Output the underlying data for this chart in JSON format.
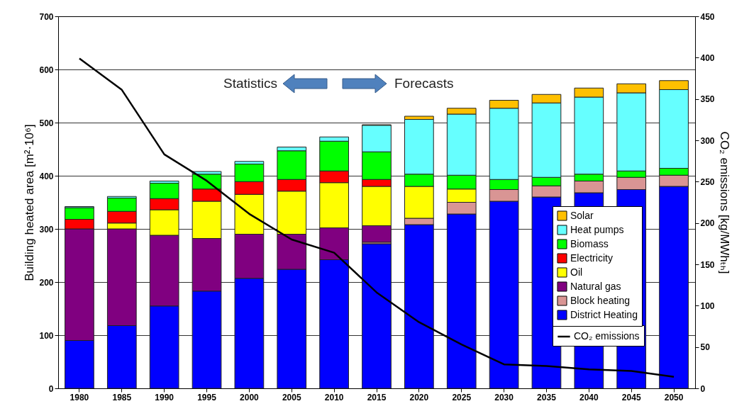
{
  "chart_data": {
    "type": "bar",
    "stacked": true,
    "categories": [
      "1980",
      "1985",
      "1990",
      "1995",
      "2000",
      "2005",
      "2010",
      "2015",
      "2020",
      "2025",
      "2030",
      "2035",
      "2040",
      "2045",
      "2050"
    ],
    "ylabel": "Building heated area [m²·10⁶]",
    "y2label": "CO₂ emissions [kg/MWhₜₕ]",
    "ylim": [
      0,
      700
    ],
    "yticks": [
      0,
      100,
      200,
      300,
      400,
      500,
      600,
      700
    ],
    "y2lim": [
      0,
      450
    ],
    "y2ticks": [
      0,
      50,
      100,
      150,
      200,
      250,
      300,
      350,
      400,
      450
    ],
    "grid": "y",
    "legend": "bottom right",
    "annotations": [
      "Statistics",
      "Forecasts"
    ],
    "series": [
      {
        "name": "District Heating",
        "color": "#0000ff",
        "values": [
          90,
          118,
          155,
          183,
          207,
          224,
          242,
          272,
          308,
          328,
          352,
          360,
          368,
          374,
          380
        ]
      },
      {
        "name": "Block heating",
        "color": "#d99594",
        "values": [
          0,
          0,
          0,
          0,
          0,
          0,
          0,
          3,
          12,
          22,
          22,
          21,
          22,
          23,
          21
        ]
      },
      {
        "name": "Natural gas",
        "color": "#800080",
        "values": [
          210,
          182,
          133,
          99,
          83,
          66,
          60,
          31,
          0,
          0,
          0,
          0,
          0,
          0,
          0
        ]
      },
      {
        "name": "Oil",
        "color": "#ffff00",
        "values": [
          0,
          11,
          48,
          70,
          75,
          81,
          85,
          74,
          60,
          25,
          0,
          0,
          0,
          0,
          0
        ]
      },
      {
        "name": "Electricity",
        "color": "#ff0000",
        "values": [
          18,
          22,
          21,
          23,
          24,
          22,
          22,
          13,
          0,
          0,
          0,
          0,
          0,
          0,
          0
        ]
      },
      {
        "name": "Biomass",
        "color": "#00ff00",
        "values": [
          22,
          25,
          29,
          28,
          33,
          54,
          56,
          52,
          23,
          26,
          19,
          16,
          13,
          12,
          13
        ]
      },
      {
        "name": "Heat pumps",
        "color": "#66ffff",
        "values": [
          2,
          3,
          4,
          5,
          5,
          7,
          8,
          50,
          103,
          115,
          134,
          140,
          145,
          147,
          148
        ]
      },
      {
        "name": "Solar",
        "color": "#ffc000",
        "values": [
          0,
          0,
          0,
          0,
          0,
          0,
          0,
          1,
          6,
          11,
          15,
          16,
          17,
          17,
          17
        ]
      },
      {
        "name": "CO₂ emissions",
        "color": "#000000",
        "type": "line",
        "axis": "y2",
        "values": [
          399,
          361,
          283,
          251,
          211,
          180,
          164,
          116,
          80,
          53,
          29,
          27,
          23,
          21,
          14
        ]
      }
    ]
  }
}
